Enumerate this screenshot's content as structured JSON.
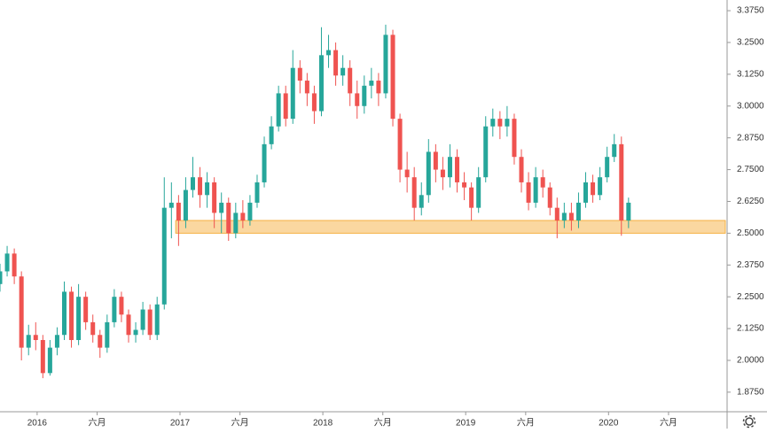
{
  "chart_data": {
    "type": "candlestick",
    "up_color": "#26a69a",
    "down_color": "#ef5350",
    "x": [
      2015.74,
      2015.79,
      2015.84,
      2015.89,
      2015.94,
      2015.99,
      2016.04,
      2016.09,
      2016.14,
      2016.19,
      2016.24,
      2016.29,
      2016.34,
      2016.39,
      2016.44,
      2016.49,
      2016.54,
      2016.59,
      2016.64,
      2016.69,
      2016.74,
      2016.79,
      2016.84,
      2016.89,
      2016.94,
      2016.99,
      2017.04,
      2017.09,
      2017.14,
      2017.19,
      2017.24,
      2017.29,
      2017.34,
      2017.39,
      2017.44,
      2017.49,
      2017.54,
      2017.59,
      2017.64,
      2017.69,
      2017.74,
      2017.79,
      2017.84,
      2017.89,
      2017.94,
      2017.99,
      2018.04,
      2018.09,
      2018.14,
      2018.19,
      2018.24,
      2018.29,
      2018.34,
      2018.39,
      2018.44,
      2018.49,
      2018.54,
      2018.59,
      2018.64,
      2018.69,
      2018.74,
      2018.79,
      2018.84,
      2018.89,
      2018.94,
      2018.99,
      2019.04,
      2019.09,
      2019.14,
      2019.19,
      2019.24,
      2019.29,
      2019.34,
      2019.39,
      2019.44,
      2019.49,
      2019.54,
      2019.59,
      2019.64,
      2019.69,
      2019.74,
      2019.79,
      2019.84,
      2019.89,
      2019.94,
      2019.99,
      2020.04,
      2020.09,
      2020.14
    ],
    "open": [
      2.3,
      2.35,
      2.42,
      2.33,
      2.05,
      2.1,
      2.08,
      1.95,
      2.05,
      2.1,
      2.27,
      2.08,
      2.25,
      2.15,
      2.1,
      2.05,
      2.15,
      2.25,
      2.18,
      2.1,
      2.12,
      2.2,
      2.1,
      2.22,
      2.6,
      2.62,
      2.55,
      2.67,
      2.72,
      2.65,
      2.7,
      2.58,
      2.62,
      2.5,
      2.58,
      2.55,
      2.62,
      2.7,
      2.85,
      2.92,
      3.05,
      2.95,
      3.15,
      3.1,
      3.05,
      2.98,
      3.2,
      3.22,
      3.12,
      3.15,
      3.05,
      3.0,
      3.08,
      3.1,
      3.05,
      3.28,
      2.95,
      2.75,
      2.72,
      2.6,
      2.65,
      2.82,
      2.75,
      2.72,
      2.8,
      2.7,
      2.68,
      2.6,
      2.72,
      2.92,
      2.95,
      2.92,
      2.95,
      2.8,
      2.7,
      2.62,
      2.72,
      2.68,
      2.6,
      2.55,
      2.58,
      2.55,
      2.62,
      2.7,
      2.65,
      2.72,
      2.8,
      2.85,
      2.55
    ],
    "high": [
      2.38,
      2.45,
      2.44,
      2.35,
      2.14,
      2.15,
      2.1,
      2.08,
      2.13,
      2.31,
      2.29,
      2.3,
      2.27,
      2.18,
      2.12,
      2.18,
      2.28,
      2.27,
      2.2,
      2.15,
      2.23,
      2.22,
      2.25,
      2.72,
      2.7,
      2.65,
      2.72,
      2.8,
      2.76,
      2.74,
      2.72,
      2.66,
      2.64,
      2.62,
      2.63,
      2.65,
      2.73,
      2.88,
      2.96,
      3.08,
      3.08,
      3.22,
      3.18,
      3.13,
      3.08,
      3.31,
      3.28,
      3.25,
      3.2,
      3.18,
      3.1,
      3.12,
      3.15,
      3.13,
      3.32,
      3.3,
      2.97,
      2.82,
      2.76,
      2.7,
      2.87,
      2.85,
      2.8,
      2.85,
      2.83,
      2.74,
      2.7,
      2.76,
      2.96,
      2.99,
      2.98,
      3.0,
      2.97,
      2.83,
      2.74,
      2.76,
      2.75,
      2.7,
      2.64,
      2.62,
      2.62,
      2.66,
      2.74,
      2.73,
      2.76,
      2.84,
      2.89,
      2.88,
      2.64
    ],
    "low": [
      2.27,
      2.33,
      2.3,
      2.0,
      2.02,
      2.04,
      1.93,
      1.94,
      2.02,
      2.08,
      2.05,
      2.06,
      2.12,
      2.07,
      2.01,
      2.03,
      2.13,
      2.15,
      2.07,
      2.07,
      2.1,
      2.08,
      2.08,
      2.2,
      2.48,
      2.45,
      2.52,
      2.64,
      2.6,
      2.6,
      2.52,
      2.5,
      2.47,
      2.48,
      2.52,
      2.53,
      2.6,
      2.68,
      2.83,
      2.9,
      2.92,
      2.93,
      3.05,
      3.0,
      2.93,
      2.96,
      3.15,
      3.08,
      3.08,
      3.0,
      2.95,
      2.97,
      3.03,
      3.0,
      3.03,
      2.92,
      2.7,
      2.66,
      2.55,
      2.57,
      2.62,
      2.7,
      2.67,
      2.68,
      2.66,
      2.63,
      2.55,
      2.58,
      2.7,
      2.88,
      2.87,
      2.88,
      2.77,
      2.66,
      2.59,
      2.6,
      2.64,
      2.57,
      2.48,
      2.52,
      2.51,
      2.52,
      2.6,
      2.62,
      2.63,
      2.7,
      2.78,
      2.49,
      2.52
    ],
    "close": [
      2.35,
      2.42,
      2.33,
      2.05,
      2.1,
      2.08,
      1.95,
      2.05,
      2.1,
      2.27,
      2.08,
      2.25,
      2.15,
      2.1,
      2.05,
      2.15,
      2.25,
      2.18,
      2.1,
      2.12,
      2.2,
      2.1,
      2.22,
      2.6,
      2.62,
      2.55,
      2.67,
      2.72,
      2.65,
      2.7,
      2.58,
      2.62,
      2.5,
      2.58,
      2.55,
      2.62,
      2.7,
      2.85,
      2.92,
      3.05,
      2.95,
      3.15,
      3.1,
      3.05,
      2.98,
      3.2,
      3.22,
      3.12,
      3.15,
      3.05,
      3.0,
      3.08,
      3.1,
      3.05,
      3.28,
      2.95,
      2.75,
      2.72,
      2.6,
      2.65,
      2.82,
      2.75,
      2.72,
      2.8,
      2.7,
      2.68,
      2.6,
      2.72,
      2.92,
      2.95,
      2.92,
      2.95,
      2.8,
      2.7,
      2.62,
      2.72,
      2.68,
      2.6,
      2.55,
      2.58,
      2.55,
      2.62,
      2.7,
      2.65,
      2.72,
      2.8,
      2.85,
      2.55,
      2.62
    ],
    "xlim": [
      2015.74,
      2020.83
    ],
    "xticks": [
      {
        "value": 2016,
        "label": "2016"
      },
      {
        "value": 2016.42,
        "label": "六月"
      },
      {
        "value": 2017,
        "label": "2017"
      },
      {
        "value": 2017.42,
        "label": "六月"
      },
      {
        "value": 2018,
        "label": "2018"
      },
      {
        "value": 2018.42,
        "label": "六月"
      },
      {
        "value": 2019,
        "label": "2019"
      },
      {
        "value": 2019.42,
        "label": "六月"
      },
      {
        "value": 2020,
        "label": "2020"
      },
      {
        "value": 2020.42,
        "label": "六月"
      }
    ],
    "ylim": [
      1.798,
      3.417
    ],
    "yticks": [
      {
        "value": 1.875,
        "label": "1.8750"
      },
      {
        "value": 2,
        "label": "2.0000"
      },
      {
        "value": 2.125,
        "label": "2.1250"
      },
      {
        "value": 2.25,
        "label": "2.2500"
      },
      {
        "value": 2.375,
        "label": "2.3750"
      },
      {
        "value": 2.5,
        "label": "2.5000"
      },
      {
        "value": 2.625,
        "label": "2.6250"
      },
      {
        "value": 2.75,
        "label": "2.7500"
      },
      {
        "value": 2.875,
        "label": "2.8750"
      },
      {
        "value": 3,
        "label": "3.0000"
      },
      {
        "value": 3.125,
        "label": "3.1250"
      },
      {
        "value": 3.25,
        "label": "3.2500"
      },
      {
        "value": 3.375,
        "label": "3.3750"
      }
    ],
    "zone": {
      "x0": 2016.97,
      "y0": 2.5,
      "y1": 2.55,
      "color": "#fad7a0",
      "edge": "#f5b041"
    }
  }
}
